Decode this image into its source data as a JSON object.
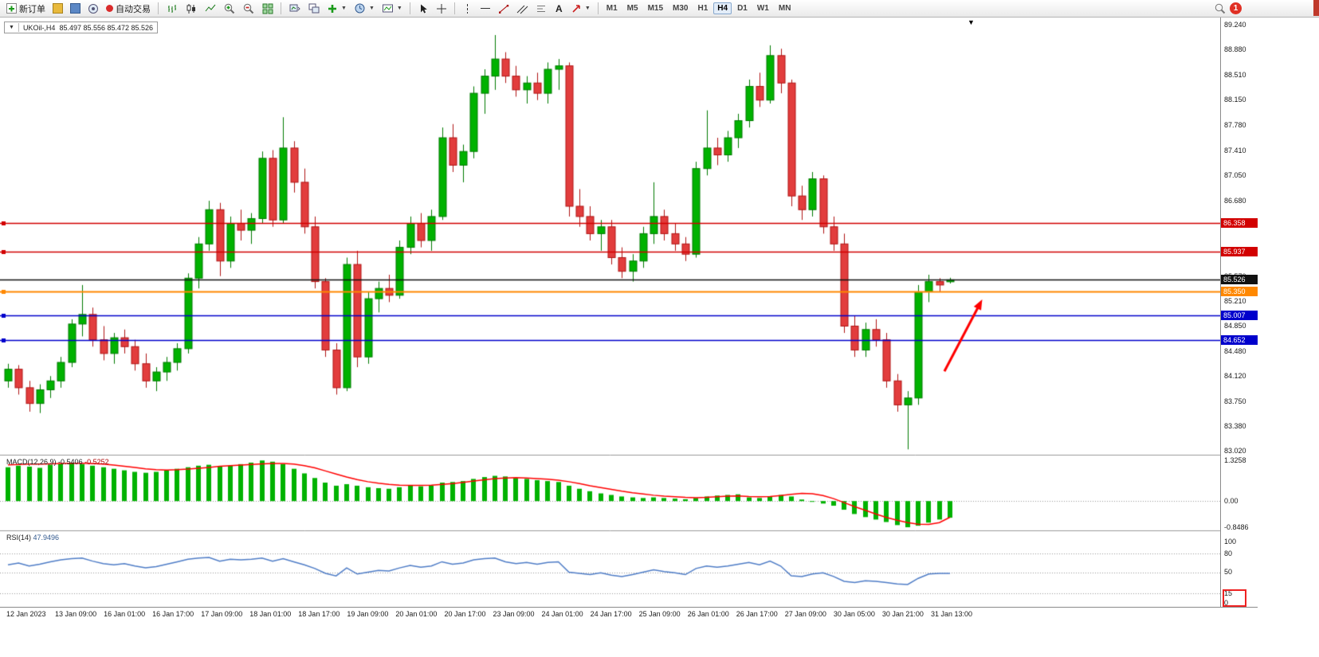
{
  "window": {
    "notification_count": "1"
  },
  "toolbar": {
    "new_order_label": "新订单",
    "auto_trading_label": "自动交易",
    "timeframes": [
      "M1",
      "M5",
      "M15",
      "M30",
      "H1",
      "H4",
      "D1",
      "W1",
      "MN"
    ],
    "active_timeframe": "H4"
  },
  "chart": {
    "symbol_label": "UKOil-,H4",
    "ohlc_text": "85.497 85.556 85.472 85.526"
  },
  "macd_panel": {
    "label": "MACD(12,26,9)",
    "main_value": "-0.5406",
    "signal_value": "-0.5252",
    "axis_labels": [
      "1.3258",
      "0.00",
      "-0.8486"
    ]
  },
  "rsi_panel": {
    "label": "RSI(14)",
    "value": "47.9496",
    "axis_labels": [
      "100",
      "80",
      "50",
      "15",
      "0"
    ]
  },
  "chart_data": {
    "type": "candlestick",
    "symbol": "UKOil-",
    "timeframe": "H4",
    "price_range": {
      "max": 89.356,
      "min": 82.96
    },
    "price_axis_ticks": [
      89.24,
      88.88,
      88.51,
      88.15,
      87.78,
      87.41,
      87.05,
      86.68,
      86.31,
      85.94,
      85.57,
      85.21,
      84.85,
      84.48,
      84.12,
      83.75,
      83.38,
      83.02
    ],
    "hlines": [
      {
        "price": 86.358,
        "label": "86.358",
        "color": "#d20000"
      },
      {
        "price": 85.937,
        "label": "85.937",
        "color": "#d20000"
      },
      {
        "price": 85.35,
        "label": "85.350",
        "color": "#ff8800"
      },
      {
        "price": 85.007,
        "label": "85.007",
        "color": "#0000cc"
      },
      {
        "price": 84.652,
        "label": "84.652",
        "color": "#0000cc"
      }
    ],
    "current_price": {
      "price": 85.526,
      "label": "85.526",
      "color": "#111111"
    },
    "candle_colors": {
      "up": "#00b200",
      "down": "#e23d3d",
      "up_wick": "#007a00",
      "down_wick": "#b01414"
    },
    "arrow_annotation": {
      "color": "#ff0000",
      "x_frac_start": 0.774,
      "price_start": 84.19,
      "x_frac_end": 0.805,
      "price_end": 85.24
    },
    "ohlc": [
      [
        84.05,
        84.3,
        83.95,
        84.22
      ],
      [
        84.22,
        84.28,
        83.85,
        83.95
      ],
      [
        83.95,
        84.05,
        83.6,
        83.72
      ],
      [
        83.72,
        84.0,
        83.58,
        83.92
      ],
      [
        83.92,
        84.12,
        83.8,
        84.05
      ],
      [
        84.05,
        84.4,
        83.95,
        84.32
      ],
      [
        84.32,
        84.95,
        84.25,
        84.88
      ],
      [
        84.88,
        85.45,
        84.7,
        85.02
      ],
      [
        85.02,
        85.12,
        84.55,
        84.65
      ],
      [
        84.65,
        84.85,
        84.35,
        84.45
      ],
      [
        84.45,
        84.75,
        84.3,
        84.68
      ],
      [
        84.68,
        84.8,
        84.45,
        84.55
      ],
      [
        84.55,
        84.65,
        84.2,
        84.3
      ],
      [
        84.3,
        84.45,
        83.95,
        84.05
      ],
      [
        84.05,
        84.25,
        83.9,
        84.18
      ],
      [
        84.18,
        84.4,
        84.05,
        84.32
      ],
      [
        84.32,
        84.6,
        84.2,
        84.52
      ],
      [
        84.52,
        85.62,
        84.45,
        85.55
      ],
      [
        85.55,
        86.15,
        85.4,
        86.05
      ],
      [
        86.05,
        86.68,
        85.95,
        86.55
      ],
      [
        86.55,
        86.65,
        85.58,
        85.8
      ],
      [
        85.8,
        86.45,
        85.7,
        86.35
      ],
      [
        86.35,
        86.55,
        86.1,
        86.25
      ],
      [
        86.25,
        86.5,
        86.05,
        86.42
      ],
      [
        86.42,
        87.4,
        86.35,
        87.3
      ],
      [
        87.3,
        87.42,
        86.3,
        86.4
      ],
      [
        86.4,
        87.9,
        86.35,
        87.45
      ],
      [
        87.45,
        87.55,
        86.8,
        86.95
      ],
      [
        86.95,
        87.15,
        86.2,
        86.3
      ],
      [
        86.3,
        86.45,
        85.4,
        85.5
      ],
      [
        85.5,
        85.55,
        84.4,
        84.5
      ],
      [
        84.5,
        84.6,
        83.85,
        83.95
      ],
      [
        83.95,
        85.85,
        83.9,
        85.75
      ],
      [
        85.75,
        85.95,
        84.25,
        84.4
      ],
      [
        84.4,
        85.35,
        84.3,
        85.25
      ],
      [
        85.25,
        85.5,
        85.05,
        85.4
      ],
      [
        85.4,
        85.6,
        85.2,
        85.3
      ],
      [
        85.3,
        86.1,
        85.25,
        86.0
      ],
      [
        86.0,
        86.45,
        85.9,
        86.35
      ],
      [
        86.35,
        86.5,
        86.0,
        86.1
      ],
      [
        86.1,
        86.55,
        85.95,
        86.45
      ],
      [
        86.45,
        87.75,
        86.4,
        87.6
      ],
      [
        87.6,
        87.8,
        87.1,
        87.2
      ],
      [
        87.2,
        87.5,
        86.95,
        87.4
      ],
      [
        87.4,
        88.35,
        87.3,
        88.25
      ],
      [
        88.25,
        88.6,
        87.95,
        88.5
      ],
      [
        88.5,
        89.1,
        88.3,
        88.75
      ],
      [
        88.75,
        88.85,
        88.4,
        88.5
      ],
      [
        88.5,
        88.65,
        88.2,
        88.3
      ],
      [
        88.3,
        88.5,
        88.1,
        88.4
      ],
      [
        88.4,
        88.55,
        88.15,
        88.25
      ],
      [
        88.25,
        88.7,
        88.1,
        88.6
      ],
      [
        88.6,
        88.75,
        88.3,
        88.65
      ],
      [
        88.65,
        88.7,
        86.45,
        86.6
      ],
      [
        86.6,
        86.85,
        86.3,
        86.45
      ],
      [
        86.45,
        86.6,
        86.1,
        86.2
      ],
      [
        86.2,
        86.4,
        85.95,
        86.3
      ],
      [
        86.3,
        86.4,
        85.75,
        85.85
      ],
      [
        85.85,
        86.0,
        85.55,
        85.65
      ],
      [
        85.65,
        85.9,
        85.5,
        85.8
      ],
      [
        85.8,
        86.3,
        85.7,
        86.2
      ],
      [
        86.2,
        86.95,
        86.05,
        86.45
      ],
      [
        86.45,
        86.55,
        86.1,
        86.2
      ],
      [
        86.2,
        86.35,
        85.95,
        86.05
      ],
      [
        86.05,
        86.15,
        85.8,
        85.9
      ],
      [
        85.9,
        87.25,
        85.85,
        87.15
      ],
      [
        87.15,
        88.0,
        87.05,
        87.45
      ],
      [
        87.45,
        87.6,
        87.2,
        87.35
      ],
      [
        87.35,
        87.7,
        87.25,
        87.6
      ],
      [
        87.6,
        87.95,
        87.45,
        87.85
      ],
      [
        87.85,
        88.45,
        87.75,
        88.35
      ],
      [
        88.35,
        88.55,
        88.05,
        88.15
      ],
      [
        88.15,
        88.95,
        88.1,
        88.8
      ],
      [
        88.8,
        88.9,
        88.25,
        88.4
      ],
      [
        88.4,
        88.45,
        86.6,
        86.75
      ],
      [
        86.75,
        86.9,
        86.4,
        86.55
      ],
      [
        86.55,
        87.1,
        86.45,
        87.0
      ],
      [
        87.0,
        87.05,
        86.2,
        86.3
      ],
      [
        86.3,
        86.45,
        85.95,
        86.05
      ],
      [
        86.05,
        86.2,
        84.75,
        84.85
      ],
      [
        84.85,
        85.0,
        84.4,
        84.5
      ],
      [
        84.5,
        84.9,
        84.4,
        84.8
      ],
      [
        84.8,
        84.95,
        84.55,
        84.65
      ],
      [
        84.65,
        84.75,
        83.95,
        84.05
      ],
      [
        84.05,
        84.15,
        83.6,
        83.7
      ],
      [
        83.7,
        83.9,
        83.05,
        83.8
      ],
      [
        83.8,
        85.45,
        83.7,
        85.35
      ],
      [
        85.35,
        85.6,
        85.2,
        85.5
      ],
      [
        85.5,
        85.55,
        85.35,
        85.45
      ],
      [
        85.497,
        85.556,
        85.472,
        85.526
      ]
    ],
    "time_labels": [
      "12 Jan 2023",
      "13 Jan 09:00",
      "16 Jan 01:00",
      "16 Jan 17:00",
      "17 Jan 09:00",
      "18 Jan 01:00",
      "18 Jan 17:00",
      "19 Jan 09:00",
      "20 Jan 01:00",
      "20 Jan 17:00",
      "23 Jan 09:00",
      "24 Jan 01:00",
      "24 Jan 17:00",
      "25 Jan 09:00",
      "26 Jan 01:00",
      "26 Jan 17:00",
      "27 Jan 09:00",
      "30 Jan 05:00",
      "30 Jan 21:00",
      "31 Jan 13:00"
    ],
    "macd": {
      "max": 1.3258,
      "min": -0.8486,
      "histogram_color": "#00b200",
      "signal_color": "#ff0000",
      "histogram": [
        1.1,
        1.15,
        1.12,
        1.08,
        1.18,
        1.22,
        1.25,
        1.2,
        1.15,
        1.1,
        1.05,
        1.0,
        0.95,
        0.92,
        0.95,
        1.0,
        1.05,
        1.1,
        1.15,
        1.18,
        1.12,
        1.15,
        1.2,
        1.25,
        1.32,
        1.28,
        1.2,
        1.05,
        0.9,
        0.75,
        0.6,
        0.5,
        0.55,
        0.5,
        0.45,
        0.42,
        0.4,
        0.45,
        0.5,
        0.48,
        0.5,
        0.6,
        0.62,
        0.65,
        0.72,
        0.78,
        0.82,
        0.8,
        0.75,
        0.72,
        0.68,
        0.65,
        0.62,
        0.5,
        0.4,
        0.32,
        0.25,
        0.2,
        0.15,
        0.12,
        0.1,
        0.12,
        0.1,
        0.08,
        0.06,
        0.1,
        0.15,
        0.18,
        0.2,
        0.22,
        0.12,
        0.1,
        0.15,
        0.2,
        0.15,
        0.05,
        -0.02,
        -0.08,
        -0.15,
        -0.28,
        -0.42,
        -0.52,
        -0.6,
        -0.68,
        -0.78,
        -0.85,
        -0.8,
        -0.7,
        -0.6,
        -0.5406
      ],
      "signal": [
        1.18,
        1.19,
        1.2,
        1.2,
        1.21,
        1.22,
        1.23,
        1.23,
        1.22,
        1.2,
        1.17,
        1.13,
        1.09,
        1.05,
        1.02,
        1.01,
        1.02,
        1.04,
        1.07,
        1.09,
        1.13,
        1.15,
        1.17,
        1.19,
        1.21,
        1.22,
        1.22,
        1.2,
        1.15,
        1.08,
        0.98,
        0.88,
        0.78,
        0.7,
        0.63,
        0.58,
        0.54,
        0.52,
        0.51,
        0.51,
        0.52,
        0.54,
        0.57,
        0.61,
        0.65,
        0.69,
        0.73,
        0.75,
        0.76,
        0.75,
        0.73,
        0.71,
        0.68,
        0.63,
        0.57,
        0.5,
        0.44,
        0.38,
        0.32,
        0.27,
        0.23,
        0.19,
        0.16,
        0.14,
        0.12,
        0.11,
        0.12,
        0.14,
        0.16,
        0.17,
        0.15,
        0.14,
        0.15,
        0.18,
        0.22,
        0.25,
        0.24,
        0.18,
        0.08,
        -0.05,
        -0.18,
        -0.3,
        -0.42,
        -0.53,
        -0.62,
        -0.7,
        -0.75,
        -0.76,
        -0.7,
        -0.5252
      ]
    },
    "rsi": {
      "levels": [
        80,
        50,
        15
      ],
      "color": "#4f7dc7",
      "values": [
        62,
        65,
        60,
        63,
        67,
        70,
        72,
        73,
        68,
        64,
        62,
        64,
        60,
        57,
        59,
        63,
        67,
        71,
        73,
        74,
        68,
        71,
        70,
        71,
        73,
        68,
        72,
        67,
        62,
        56,
        48,
        44,
        57,
        47,
        50,
        53,
        52,
        57,
        61,
        58,
        60,
        67,
        63,
        65,
        70,
        72,
        73,
        67,
        64,
        66,
        63,
        66,
        67,
        50,
        48,
        46,
        49,
        45,
        43,
        46,
        50,
        54,
        51,
        49,
        46,
        56,
        60,
        58,
        60,
        63,
        66,
        62,
        68,
        60,
        44,
        43,
        47,
        49,
        43,
        35,
        33,
        36,
        35,
        33,
        31,
        30,
        40,
        47,
        48,
        47.9496
      ]
    }
  }
}
